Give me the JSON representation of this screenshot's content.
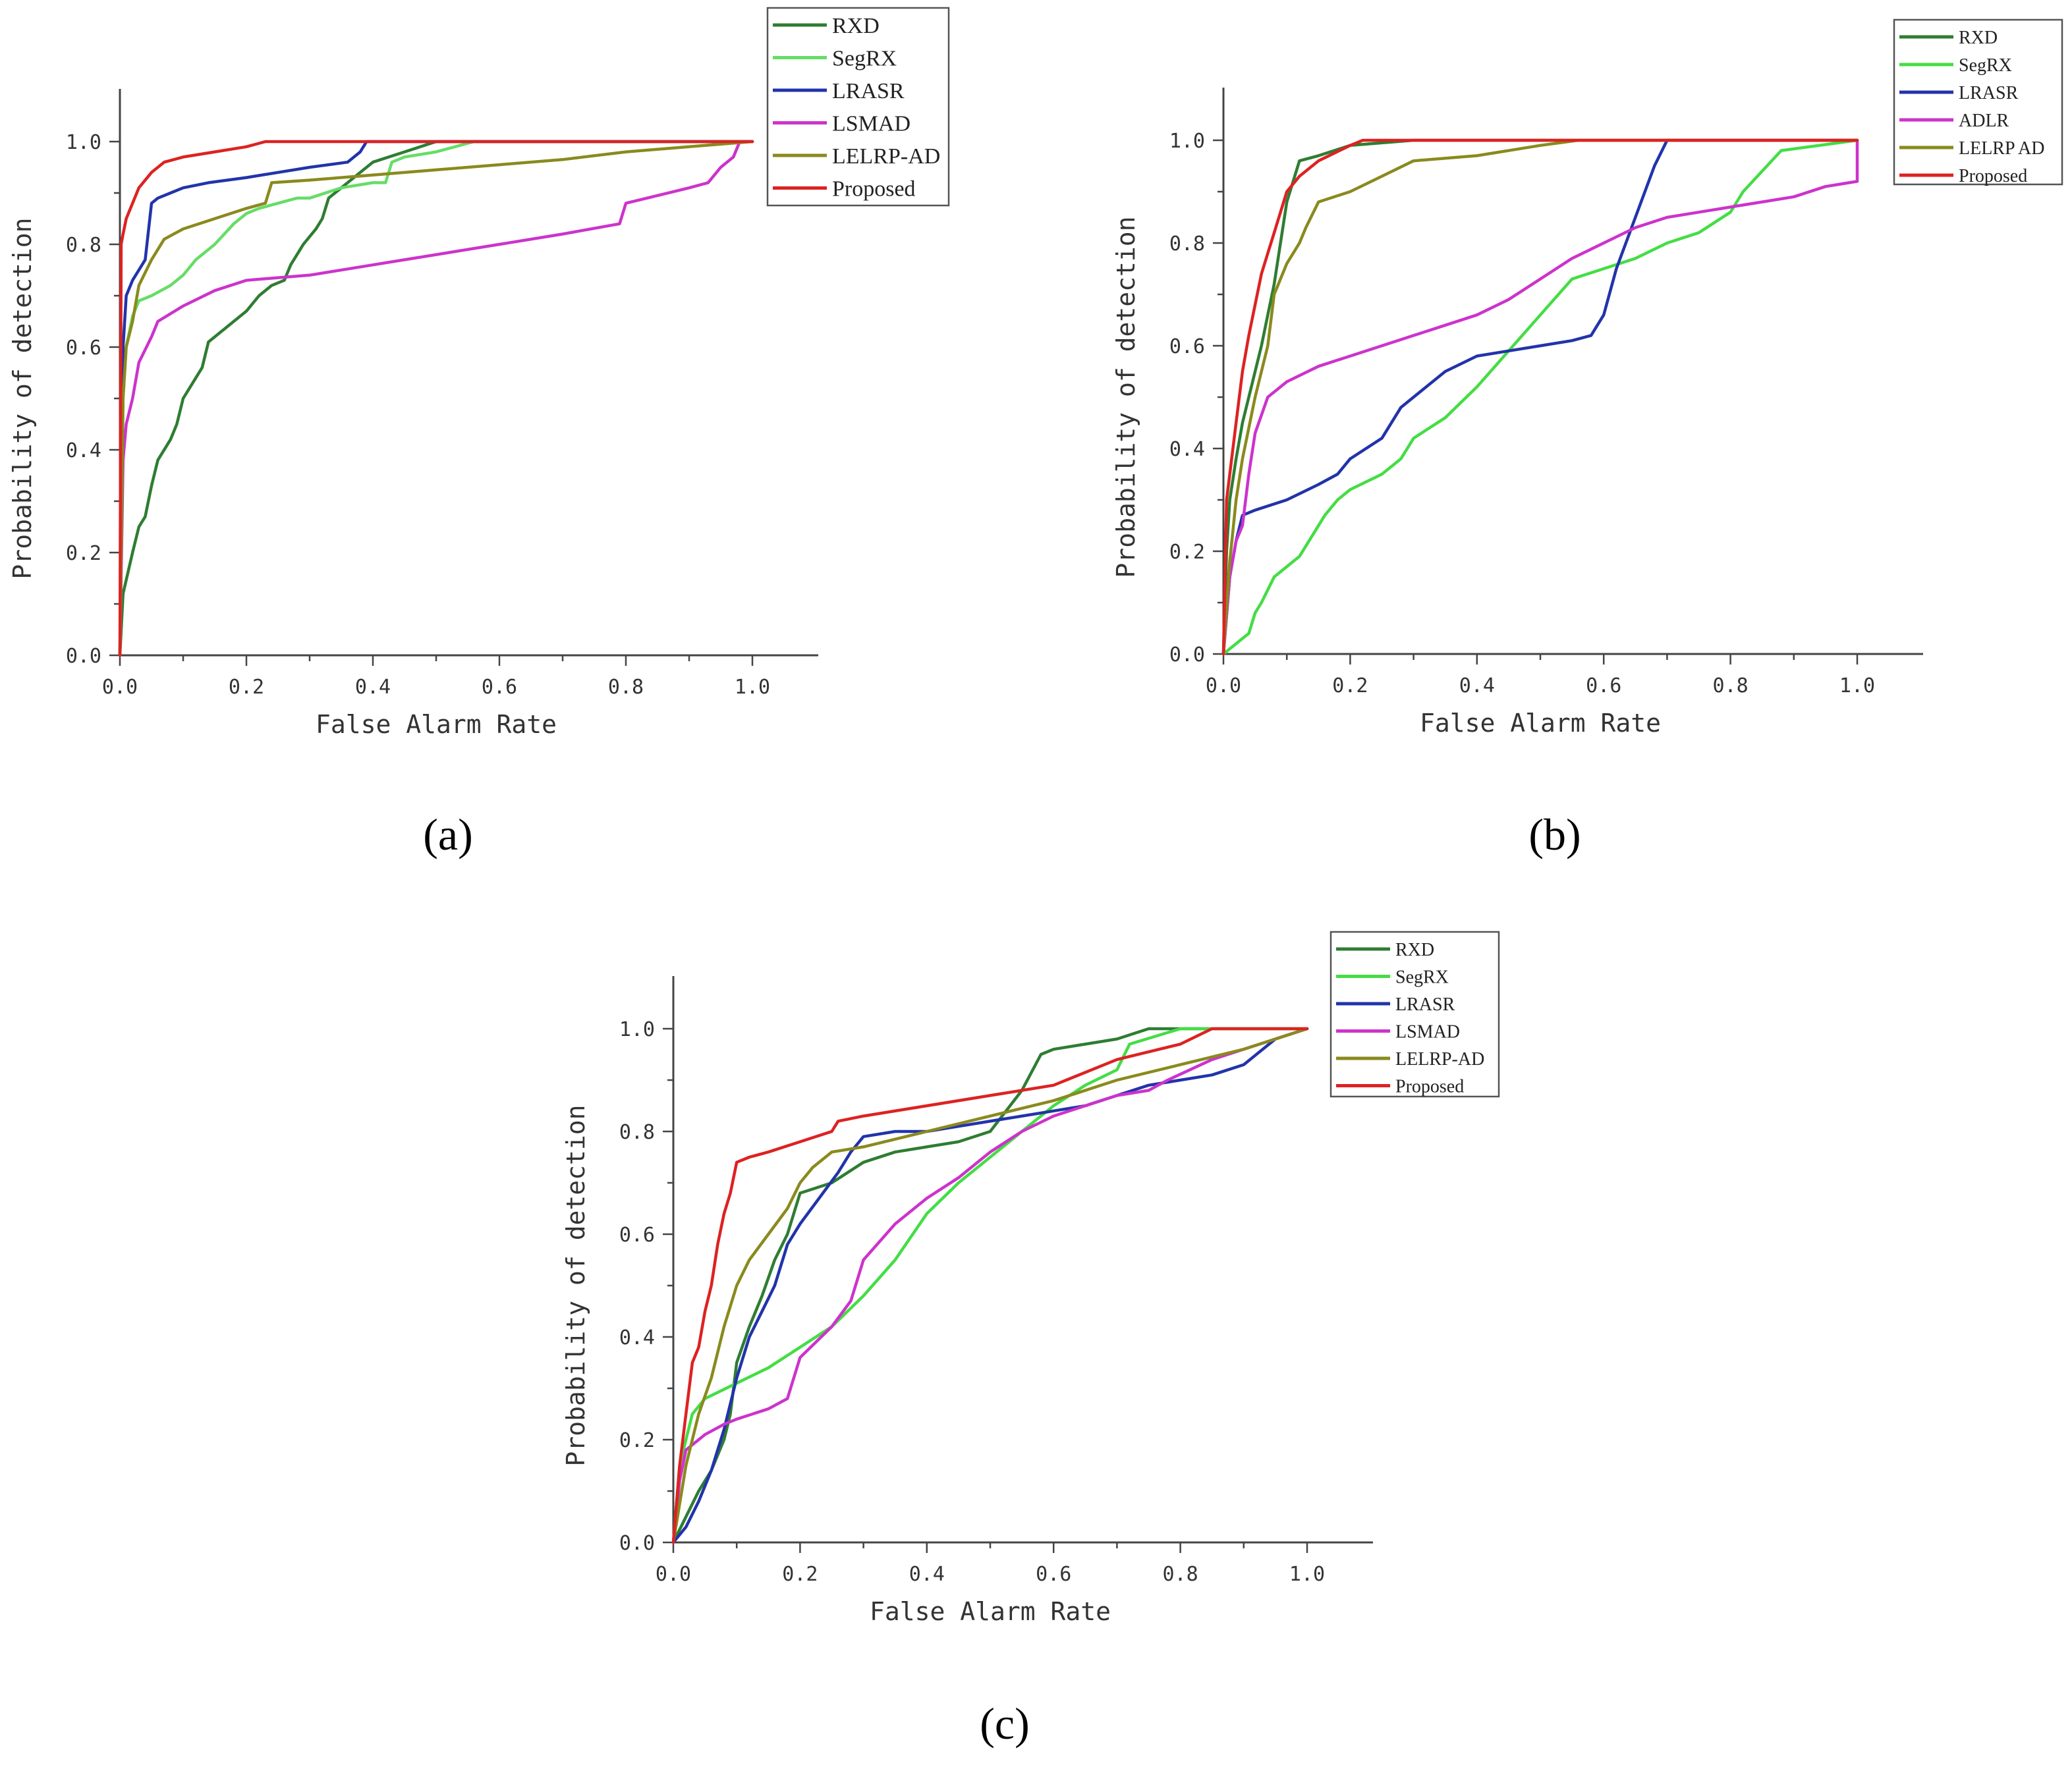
{
  "figure_captions": [
    "(a)",
    "(b)",
    "(c)"
  ],
  "chart_data": [
    {
      "type": "line",
      "panel": "(a)",
      "xlabel": "False Alarm Rate",
      "ylabel": "Probability of detection",
      "xlim": [
        0,
        1.1
      ],
      "ylim": [
        0,
        1.1
      ],
      "x_ticks": [
        "0.0",
        "0.2",
        "0.4",
        "0.6",
        "0.8",
        "1.0"
      ],
      "y_ticks": [
        "0.0",
        "0.2",
        "0.4",
        "0.6",
        "0.8",
        "1.0"
      ],
      "legend_position": "top-right",
      "series": [
        {
          "name": "RXD",
          "color": "#2e7d32",
          "x": [
            0,
            0.005,
            0.02,
            0.03,
            0.04,
            0.05,
            0.06,
            0.08,
            0.09,
            0.1,
            0.12,
            0.13,
            0.14,
            0.16,
            0.18,
            0.2,
            0.22,
            0.24,
            0.26,
            0.27,
            0.29,
            0.31,
            0.32,
            0.33,
            0.35,
            0.38,
            0.4,
            0.45,
            0.5,
            1.0
          ],
          "y": [
            0,
            0.12,
            0.2,
            0.25,
            0.27,
            0.33,
            0.38,
            0.42,
            0.45,
            0.5,
            0.54,
            0.56,
            0.61,
            0.63,
            0.65,
            0.67,
            0.7,
            0.72,
            0.73,
            0.76,
            0.8,
            0.83,
            0.85,
            0.89,
            0.91,
            0.94,
            0.96,
            0.98,
            1.0,
            1.0
          ]
        },
        {
          "name": "SegRX",
          "color": "#66dd66",
          "x": [
            0,
            0.005,
            0.01,
            0.02,
            0.03,
            0.05,
            0.08,
            0.1,
            0.12,
            0.15,
            0.18,
            0.2,
            0.22,
            0.25,
            0.28,
            0.3,
            0.35,
            0.4,
            0.42,
            0.43,
            0.45,
            0.5,
            0.56,
            1.0
          ],
          "y": [
            0,
            0.5,
            0.6,
            0.66,
            0.69,
            0.7,
            0.72,
            0.74,
            0.77,
            0.8,
            0.84,
            0.86,
            0.87,
            0.88,
            0.89,
            0.89,
            0.91,
            0.92,
            0.92,
            0.96,
            0.97,
            0.98,
            1.0,
            1.0
          ]
        },
        {
          "name": "LRASR",
          "color": "#2233aa",
          "x": [
            0,
            0.005,
            0.01,
            0.02,
            0.03,
            0.04,
            0.05,
            0.06,
            0.08,
            0.1,
            0.14,
            0.2,
            0.25,
            0.3,
            0.36,
            0.38,
            0.39,
            0.42,
            1.0
          ],
          "y": [
            0,
            0.6,
            0.7,
            0.73,
            0.75,
            0.77,
            0.88,
            0.89,
            0.9,
            0.91,
            0.92,
            0.93,
            0.94,
            0.95,
            0.96,
            0.98,
            1.0,
            1.0,
            1.0
          ]
        },
        {
          "name": "LSMAD",
          "color": "#cc33cc",
          "x": [
            0,
            0.005,
            0.01,
            0.02,
            0.03,
            0.05,
            0.06,
            0.1,
            0.15,
            0.2,
            0.3,
            0.4,
            0.5,
            0.6,
            0.7,
            0.79,
            0.8,
            0.9,
            0.93,
            0.95,
            0.97,
            0.98,
            1.0
          ],
          "y": [
            0,
            0.38,
            0.45,
            0.5,
            0.57,
            0.62,
            0.65,
            0.68,
            0.71,
            0.73,
            0.74,
            0.76,
            0.78,
            0.8,
            0.82,
            0.84,
            0.88,
            0.91,
            0.92,
            0.95,
            0.97,
            1.0,
            1.0
          ]
        },
        {
          "name": "LELRP-AD",
          "color": "#8a8a1e",
          "x": [
            0,
            0.005,
            0.01,
            0.02,
            0.03,
            0.05,
            0.07,
            0.1,
            0.15,
            0.2,
            0.23,
            0.24,
            0.3,
            0.4,
            0.5,
            0.6,
            0.7,
            0.8,
            0.9,
            1.0
          ],
          "y": [
            0,
            0.5,
            0.6,
            0.65,
            0.72,
            0.77,
            0.81,
            0.83,
            0.85,
            0.87,
            0.88,
            0.92,
            0.925,
            0.935,
            0.945,
            0.955,
            0.965,
            0.98,
            0.99,
            1.0
          ]
        },
        {
          "name": "Proposed",
          "color": "#dd2222",
          "x": [
            0,
            0.002,
            0.005,
            0.01,
            0.02,
            0.03,
            0.05,
            0.07,
            0.1,
            0.15,
            0.2,
            0.23,
            0.3,
            1.0
          ],
          "y": [
            0,
            0.8,
            0.82,
            0.85,
            0.88,
            0.91,
            0.94,
            0.96,
            0.97,
            0.98,
            0.99,
            1.0,
            1.0,
            1.0
          ]
        }
      ]
    },
    {
      "type": "line",
      "panel": "(b)",
      "xlabel": "False Alarm Rate",
      "ylabel": "Probability of detection",
      "xlim": [
        0,
        1.1
      ],
      "ylim": [
        0,
        1.1
      ],
      "x_ticks": [
        "0.0",
        "0.2",
        "0.4",
        "0.6",
        "0.8",
        "1.0"
      ],
      "y_ticks": [
        "0.0",
        "0.2",
        "0.4",
        "0.6",
        "0.8",
        "1.0"
      ],
      "legend_position": "top-right",
      "series": [
        {
          "name": "RXD",
          "color": "#2e7d32",
          "x": [
            0,
            0.005,
            0.01,
            0.02,
            0.03,
            0.04,
            0.05,
            0.06,
            0.07,
            0.08,
            0.09,
            0.1,
            0.12,
            0.15,
            0.2,
            0.3,
            1.0
          ],
          "y": [
            0,
            0.2,
            0.3,
            0.38,
            0.45,
            0.5,
            0.55,
            0.6,
            0.66,
            0.72,
            0.8,
            0.88,
            0.96,
            0.97,
            0.99,
            1.0,
            1.0
          ]
        },
        {
          "name": "SegRX",
          "color": "#44dd44",
          "x": [
            0,
            0.02,
            0.04,
            0.05,
            0.06,
            0.08,
            0.1,
            0.12,
            0.14,
            0.16,
            0.18,
            0.2,
            0.25,
            0.28,
            0.3,
            0.35,
            0.4,
            0.45,
            0.5,
            0.55,
            0.6,
            0.65,
            0.7,
            0.75,
            0.8,
            0.82,
            0.85,
            0.88,
            1.0
          ],
          "y": [
            0,
            0.02,
            0.04,
            0.08,
            0.1,
            0.15,
            0.17,
            0.19,
            0.23,
            0.27,
            0.3,
            0.32,
            0.35,
            0.38,
            0.42,
            0.46,
            0.52,
            0.59,
            0.66,
            0.73,
            0.75,
            0.77,
            0.8,
            0.82,
            0.86,
            0.9,
            0.94,
            0.98,
            1.0
          ]
        },
        {
          "name": "LRASR",
          "color": "#2233aa",
          "x": [
            0,
            0.01,
            0.02,
            0.03,
            0.05,
            0.1,
            0.15,
            0.18,
            0.2,
            0.25,
            0.28,
            0.3,
            0.35,
            0.4,
            0.45,
            0.5,
            0.55,
            0.58,
            0.6,
            0.62,
            0.65,
            0.68,
            0.7,
            1.0
          ],
          "y": [
            0,
            0.15,
            0.22,
            0.27,
            0.28,
            0.3,
            0.33,
            0.35,
            0.38,
            0.42,
            0.48,
            0.5,
            0.55,
            0.58,
            0.59,
            0.6,
            0.61,
            0.62,
            0.66,
            0.75,
            0.85,
            0.95,
            1.0,
            1.0
          ]
        },
        {
          "name": "ADLR",
          "color": "#cc33cc",
          "x": [
            0,
            0.01,
            0.02,
            0.03,
            0.04,
            0.05,
            0.07,
            0.1,
            0.15,
            0.2,
            0.25,
            0.3,
            0.35,
            0.4,
            0.45,
            0.5,
            0.55,
            0.6,
            0.65,
            0.7,
            0.75,
            0.8,
            0.85,
            0.9,
            0.95,
            1.0,
            1.0
          ],
          "y": [
            0,
            0.15,
            0.22,
            0.25,
            0.35,
            0.43,
            0.5,
            0.53,
            0.56,
            0.58,
            0.6,
            0.62,
            0.64,
            0.66,
            0.69,
            0.73,
            0.77,
            0.8,
            0.83,
            0.85,
            0.86,
            0.87,
            0.88,
            0.89,
            0.91,
            0.92,
            1.0
          ]
        },
        {
          "name": "LELRP AD",
          "color": "#8a8a1e",
          "x": [
            0,
            0.01,
            0.02,
            0.03,
            0.05,
            0.07,
            0.08,
            0.1,
            0.12,
            0.13,
            0.15,
            0.2,
            0.25,
            0.3,
            0.4,
            0.5,
            0.56,
            1.0
          ],
          "y": [
            0,
            0.18,
            0.3,
            0.38,
            0.5,
            0.6,
            0.7,
            0.76,
            0.8,
            0.83,
            0.88,
            0.9,
            0.93,
            0.96,
            0.97,
            0.99,
            1.0,
            1.0
          ]
        },
        {
          "name": "Proposed",
          "color": "#dd2222",
          "x": [
            0,
            0.005,
            0.01,
            0.02,
            0.03,
            0.04,
            0.05,
            0.06,
            0.07,
            0.08,
            0.09,
            0.1,
            0.12,
            0.15,
            0.2,
            0.22,
            1.0
          ],
          "y": [
            0,
            0.3,
            0.35,
            0.45,
            0.55,
            0.62,
            0.68,
            0.74,
            0.78,
            0.82,
            0.86,
            0.9,
            0.93,
            0.96,
            0.99,
            1.0,
            1.0
          ]
        }
      ]
    },
    {
      "type": "line",
      "panel": "(c)",
      "xlabel": "False Alarm Rate",
      "ylabel": "Probability of detection",
      "xlim": [
        0,
        1.1
      ],
      "ylim": [
        0,
        1.1
      ],
      "x_ticks": [
        "0.0",
        "0.2",
        "0.4",
        "0.6",
        "0.8",
        "1.0"
      ],
      "y_ticks": [
        "0.0",
        "0.2",
        "0.4",
        "0.6",
        "0.8",
        "1.0"
      ],
      "legend_position": "top-right",
      "series": [
        {
          "name": "RXD",
          "color": "#2e7d32",
          "x": [
            0,
            0.02,
            0.04,
            0.06,
            0.08,
            0.09,
            0.1,
            0.12,
            0.14,
            0.16,
            0.18,
            0.2,
            0.25,
            0.3,
            0.35,
            0.4,
            0.45,
            0.5,
            0.55,
            0.58,
            0.6,
            0.65,
            0.7,
            0.75,
            0.8,
            1.0
          ],
          "y": [
            0,
            0.05,
            0.1,
            0.14,
            0.2,
            0.25,
            0.35,
            0.42,
            0.48,
            0.55,
            0.6,
            0.68,
            0.7,
            0.74,
            0.76,
            0.77,
            0.78,
            0.8,
            0.88,
            0.95,
            0.96,
            0.97,
            0.98,
            1.0,
            1.0,
            1.0
          ]
        },
        {
          "name": "SegRX",
          "color": "#44dd44",
          "x": [
            0,
            0.01,
            0.02,
            0.03,
            0.05,
            0.1,
            0.15,
            0.2,
            0.25,
            0.3,
            0.35,
            0.4,
            0.45,
            0.5,
            0.55,
            0.6,
            0.65,
            0.7,
            0.72,
            0.8,
            1.0
          ],
          "y": [
            0,
            0.15,
            0.2,
            0.25,
            0.28,
            0.31,
            0.34,
            0.38,
            0.42,
            0.48,
            0.55,
            0.64,
            0.7,
            0.75,
            0.8,
            0.85,
            0.89,
            0.92,
            0.97,
            1.0,
            1.0
          ]
        },
        {
          "name": "LRASR",
          "color": "#2233aa",
          "x": [
            0,
            0.02,
            0.04,
            0.06,
            0.08,
            0.1,
            0.12,
            0.14,
            0.16,
            0.18,
            0.2,
            0.23,
            0.26,
            0.28,
            0.3,
            0.35,
            0.4,
            0.45,
            0.5,
            0.55,
            0.6,
            0.65,
            0.7,
            0.75,
            0.8,
            0.85,
            0.9,
            0.95,
            1.0
          ],
          "y": [
            0,
            0.03,
            0.08,
            0.14,
            0.22,
            0.32,
            0.4,
            0.45,
            0.5,
            0.58,
            0.62,
            0.67,
            0.72,
            0.76,
            0.79,
            0.8,
            0.8,
            0.81,
            0.82,
            0.83,
            0.84,
            0.85,
            0.87,
            0.89,
            0.9,
            0.91,
            0.93,
            0.98,
            1.0
          ]
        },
        {
          "name": "LSMAD",
          "color": "#cc33cc",
          "x": [
            0,
            0.01,
            0.02,
            0.05,
            0.08,
            0.1,
            0.15,
            0.18,
            0.2,
            0.25,
            0.28,
            0.3,
            0.35,
            0.4,
            0.45,
            0.5,
            0.55,
            0.6,
            0.65,
            0.7,
            0.75,
            0.78,
            0.85,
            1.0
          ],
          "y": [
            0,
            0.12,
            0.18,
            0.21,
            0.23,
            0.24,
            0.26,
            0.28,
            0.36,
            0.42,
            0.47,
            0.55,
            0.62,
            0.67,
            0.71,
            0.76,
            0.8,
            0.83,
            0.85,
            0.87,
            0.88,
            0.9,
            0.94,
            1.0
          ]
        },
        {
          "name": "LELRP-AD",
          "color": "#8a8a1e",
          "x": [
            0,
            0.02,
            0.04,
            0.06,
            0.08,
            0.1,
            0.12,
            0.15,
            0.18,
            0.2,
            0.22,
            0.25,
            0.3,
            0.4,
            0.5,
            0.6,
            0.7,
            0.8,
            0.9,
            1.0
          ],
          "y": [
            0,
            0.15,
            0.25,
            0.32,
            0.42,
            0.5,
            0.55,
            0.6,
            0.65,
            0.7,
            0.73,
            0.76,
            0.77,
            0.8,
            0.83,
            0.86,
            0.9,
            0.93,
            0.96,
            1.0
          ]
        },
        {
          "name": "Proposed",
          "color": "#dd2222",
          "x": [
            0,
            0.01,
            0.02,
            0.03,
            0.04,
            0.05,
            0.06,
            0.07,
            0.08,
            0.09,
            0.1,
            0.12,
            0.15,
            0.2,
            0.25,
            0.26,
            0.3,
            0.4,
            0.5,
            0.6,
            0.62,
            0.7,
            0.8,
            0.85,
            0.9,
            1.0
          ],
          "y": [
            0,
            0.15,
            0.25,
            0.35,
            0.38,
            0.45,
            0.5,
            0.58,
            0.64,
            0.68,
            0.74,
            0.75,
            0.76,
            0.78,
            0.8,
            0.82,
            0.83,
            0.85,
            0.87,
            0.89,
            0.9,
            0.94,
            0.97,
            1.0,
            1.0,
            1.0
          ]
        }
      ]
    }
  ]
}
